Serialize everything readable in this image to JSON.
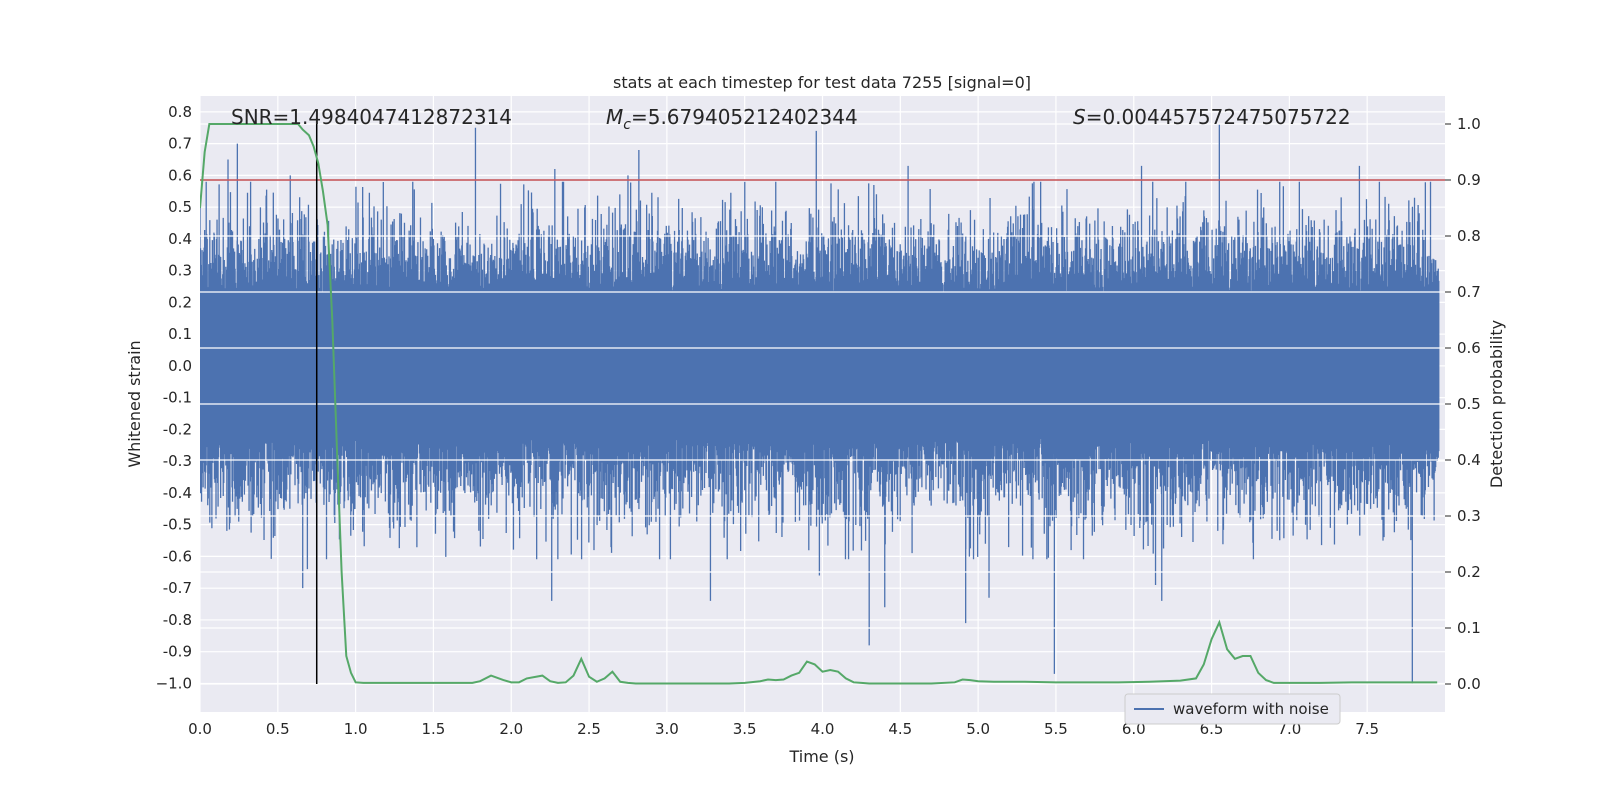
{
  "chart_data": {
    "type": "line",
    "title": "stats at each timestep for test data 7255 [signal=0]",
    "xlabel": "Time (s)",
    "ylabel": "Whitened strain",
    "y2label": "Detection probability",
    "xlim": [
      0,
      8
    ],
    "ylim": [
      -1.09,
      0.85
    ],
    "y2lim": [
      -0.05,
      1.05
    ],
    "xticks": [
      0.0,
      0.5,
      1.0,
      1.5,
      2.0,
      2.5,
      3.0,
      3.5,
      4.0,
      4.5,
      5.0,
      5.5,
      6.0,
      6.5,
      7.0,
      7.5
    ],
    "xtick_labels": [
      "0.0",
      "0.5",
      "1.0",
      "1.5",
      "2.0",
      "2.5",
      "3.0",
      "3.5",
      "4.0",
      "4.5",
      "5.0",
      "5.5",
      "6.0",
      "6.5",
      "7.0",
      "7.5"
    ],
    "yticks": [
      0.8,
      0.7,
      0.6,
      0.5,
      0.4,
      0.3,
      0.2,
      0.1,
      0.0,
      -0.1,
      -0.2,
      -0.3,
      -0.4,
      -0.5,
      -0.6,
      -0.7,
      -0.8,
      -0.9,
      -1.0
    ],
    "ytick_labels": [
      "0.8",
      "0.7",
      "0.6",
      "0.5",
      "0.4",
      "0.3",
      "0.2",
      "0.1",
      "0.0",
      "-0.1",
      "-0.2",
      "-0.3",
      "-0.4",
      "-0.5",
      "-0.6",
      "-0.7",
      "-0.8",
      "-0.9",
      "−1.0"
    ],
    "y2ticks": [
      1.0,
      0.9,
      0.8,
      0.7,
      0.6,
      0.5,
      0.4,
      0.3,
      0.2,
      0.1,
      0.0
    ],
    "y2tick_labels": [
      "1.0",
      "0.9",
      "0.8",
      "0.7",
      "0.6",
      "0.5",
      "0.4",
      "0.3",
      "0.2",
      "0.1",
      "0.0"
    ],
    "annotations": {
      "snr": "SNR=1.4984047412872314",
      "mc_symbol": "M",
      "mc_sub": "c",
      "mc_value": "=5.679405212402344",
      "s_symbol": "S",
      "s_value": "=0.004457572475075722"
    },
    "threshold_line": {
      "y2": 0.9,
      "color": "#c44e52"
    },
    "vertical_marker": {
      "x": 0.75,
      "color": "#000000"
    },
    "series": [
      {
        "name": "waveform with noise",
        "color": "#4c72b0",
        "axis": "left",
        "envelope": {
          "positive_typical": 0.4,
          "negative_typical": -0.42,
          "dense_core": 0.23
        },
        "peaks": [
          {
            "x": 0.18,
            "y": 0.65
          },
          {
            "x": 0.24,
            "y": 0.7
          },
          {
            "x": 0.58,
            "y": 0.6
          },
          {
            "x": 1.77,
            "y": 0.75
          },
          {
            "x": 2.28,
            "y": 0.62
          },
          {
            "x": 2.75,
            "y": 0.6
          },
          {
            "x": 2.82,
            "y": 0.68
          },
          {
            "x": 3.96,
            "y": 0.74
          },
          {
            "x": 4.55,
            "y": 0.63
          },
          {
            "x": 6.05,
            "y": 0.63
          },
          {
            "x": 6.55,
            "y": 0.76
          },
          {
            "x": 7.45,
            "y": 0.63
          }
        ],
        "troughs": [
          {
            "x": 0.66,
            "y": -0.7
          },
          {
            "x": 0.69,
            "y": -0.64
          },
          {
            "x": 2.26,
            "y": -0.74
          },
          {
            "x": 3.28,
            "y": -0.74
          },
          {
            "x": 3.98,
            "y": -0.66
          },
          {
            "x": 4.3,
            "y": -0.88
          },
          {
            "x": 4.4,
            "y": -0.76
          },
          {
            "x": 4.92,
            "y": -0.81
          },
          {
            "x": 5.07,
            "y": -0.73
          },
          {
            "x": 5.49,
            "y": -0.97
          },
          {
            "x": 6.14,
            "y": -0.69
          },
          {
            "x": 6.18,
            "y": -0.74
          },
          {
            "x": 7.79,
            "y": -1.0
          }
        ]
      },
      {
        "name": "detection probability",
        "color": "#55a868",
        "axis": "right",
        "x": [
          0.0,
          0.03,
          0.06,
          0.1,
          0.2,
          0.3,
          0.4,
          0.5,
          0.6,
          0.63,
          0.66,
          0.7,
          0.73,
          0.76,
          0.79,
          0.82,
          0.85,
          0.88,
          0.91,
          0.94,
          0.97,
          1.0,
          1.05,
          1.1,
          1.2,
          1.4,
          1.6,
          1.75,
          1.8,
          1.87,
          1.95,
          2.0,
          2.05,
          2.1,
          2.2,
          2.25,
          2.3,
          2.35,
          2.4,
          2.45,
          2.5,
          2.55,
          2.6,
          2.65,
          2.7,
          2.75,
          2.8,
          3.0,
          3.2,
          3.4,
          3.5,
          3.6,
          3.65,
          3.7,
          3.75,
          3.8,
          3.85,
          3.9,
          3.95,
          4.0,
          4.05,
          4.1,
          4.15,
          4.2,
          4.25,
          4.3,
          4.5,
          4.7,
          4.85,
          4.9,
          4.95,
          5.0,
          5.1,
          5.3,
          5.5,
          5.7,
          5.9,
          6.1,
          6.3,
          6.4,
          6.45,
          6.5,
          6.55,
          6.6,
          6.65,
          6.7,
          6.75,
          6.8,
          6.85,
          6.9,
          7.0,
          7.2,
          7.4,
          7.6,
          7.8,
          7.95
        ],
        "y": [
          0.85,
          0.95,
          1.0,
          1.0,
          1.0,
          1.0,
          1.0,
          1.0,
          1.0,
          1.0,
          0.99,
          0.98,
          0.96,
          0.93,
          0.88,
          0.82,
          0.65,
          0.42,
          0.2,
          0.05,
          0.02,
          0.003,
          0.002,
          0.002,
          0.002,
          0.002,
          0.002,
          0.002,
          0.005,
          0.015,
          0.007,
          0.003,
          0.003,
          0.01,
          0.015,
          0.005,
          0.002,
          0.003,
          0.015,
          0.045,
          0.013,
          0.004,
          0.01,
          0.022,
          0.004,
          0.002,
          0.001,
          0.001,
          0.001,
          0.001,
          0.002,
          0.005,
          0.008,
          0.007,
          0.008,
          0.015,
          0.02,
          0.04,
          0.035,
          0.022,
          0.025,
          0.022,
          0.01,
          0.003,
          0.002,
          0.001,
          0.001,
          0.001,
          0.003,
          0.008,
          0.007,
          0.005,
          0.004,
          0.004,
          0.003,
          0.003,
          0.003,
          0.004,
          0.006,
          0.01,
          0.035,
          0.08,
          0.11,
          0.062,
          0.045,
          0.05,
          0.05,
          0.02,
          0.007,
          0.002,
          0.002,
          0.002,
          0.003,
          0.003,
          0.003,
          0.003
        ]
      }
    ],
    "legend": {
      "placement": "lower-right",
      "entries": [
        "waveform with noise"
      ]
    }
  }
}
